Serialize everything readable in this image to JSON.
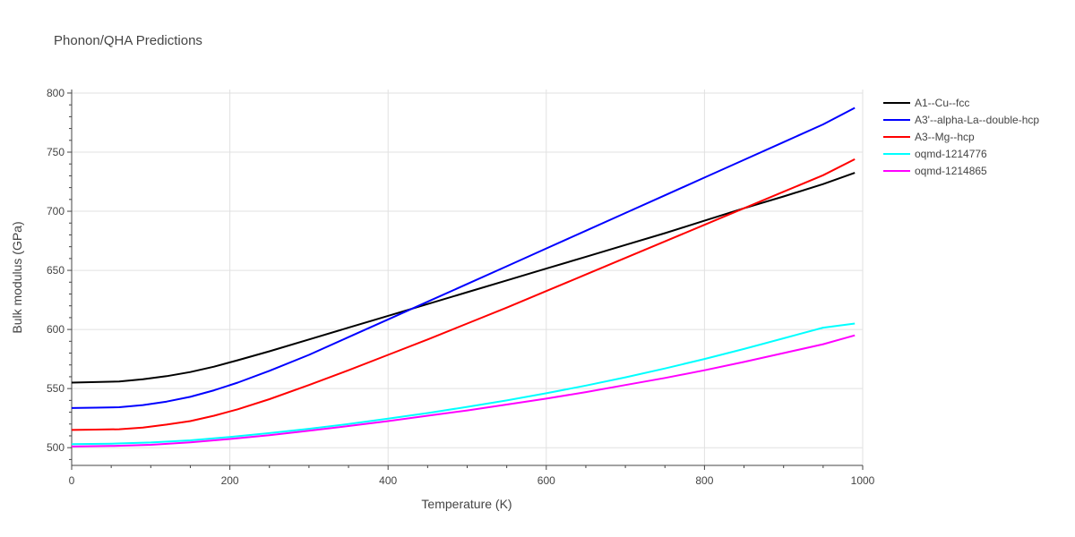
{
  "chart_data": {
    "type": "line",
    "title": "Phonon/QHA Predictions",
    "xlabel": "Temperature (K)",
    "ylabel": "Bulk modulus (GPa)",
    "xlim": [
      0,
      1000
    ],
    "ylim": [
      485,
      803
    ],
    "xticks": [
      0,
      200,
      400,
      600,
      800,
      1000
    ],
    "yticks": [
      500,
      550,
      600,
      650,
      700,
      750,
      800
    ],
    "grid": true,
    "legend_position": "top-right",
    "series": [
      {
        "name": "A1--Cu--fcc",
        "color": "#000000",
        "points": [
          [
            0,
            555
          ],
          [
            30,
            555.5
          ],
          [
            60,
            556
          ],
          [
            90,
            557.8
          ],
          [
            120,
            560.5
          ],
          [
            150,
            564
          ],
          [
            180,
            568.5
          ],
          [
            210,
            574
          ],
          [
            250,
            581.5
          ],
          [
            300,
            591.5
          ],
          [
            350,
            601.5
          ],
          [
            400,
            611.5
          ],
          [
            450,
            621.5
          ],
          [
            500,
            631.5
          ],
          [
            550,
            641.5
          ],
          [
            600,
            651.5
          ],
          [
            650,
            661.5
          ],
          [
            700,
            671.5
          ],
          [
            750,
            681.5
          ],
          [
            800,
            692
          ],
          [
            850,
            702.5
          ],
          [
            900,
            712.5
          ],
          [
            950,
            723
          ],
          [
            990,
            732.5
          ]
        ]
      },
      {
        "name": "A3'--alpha-La--double-hcp",
        "color": "#0000ff",
        "points": [
          [
            0,
            533.5
          ],
          [
            30,
            533.8
          ],
          [
            60,
            534.2
          ],
          [
            90,
            536
          ],
          [
            120,
            539
          ],
          [
            150,
            543
          ],
          [
            180,
            548.5
          ],
          [
            210,
            555
          ],
          [
            250,
            565
          ],
          [
            300,
            578.5
          ],
          [
            350,
            593.5
          ],
          [
            400,
            608.5
          ],
          [
            450,
            623.5
          ],
          [
            500,
            638.5
          ],
          [
            550,
            653.5
          ],
          [
            600,
            668.5
          ],
          [
            650,
            683.5
          ],
          [
            700,
            698.5
          ],
          [
            750,
            713.5
          ],
          [
            800,
            728.5
          ],
          [
            850,
            743.5
          ],
          [
            900,
            758.5
          ],
          [
            950,
            773.5
          ],
          [
            990,
            787.5
          ]
        ]
      },
      {
        "name": "A3--Mg--hcp",
        "color": "#ff0000",
        "points": [
          [
            0,
            515
          ],
          [
            30,
            515.3
          ],
          [
            60,
            515.6
          ],
          [
            90,
            517
          ],
          [
            120,
            519.5
          ],
          [
            150,
            522.5
          ],
          [
            180,
            527
          ],
          [
            210,
            532.5
          ],
          [
            250,
            541
          ],
          [
            300,
            553
          ],
          [
            350,
            565.5
          ],
          [
            400,
            578.5
          ],
          [
            450,
            591.5
          ],
          [
            500,
            605
          ],
          [
            550,
            618.5
          ],
          [
            600,
            632.5
          ],
          [
            650,
            646.5
          ],
          [
            700,
            660.5
          ],
          [
            750,
            674.5
          ],
          [
            800,
            688.5
          ],
          [
            850,
            702.5
          ],
          [
            900,
            716.5
          ],
          [
            950,
            730.5
          ],
          [
            990,
            744
          ]
        ]
      },
      {
        "name": "oqmd-1214776",
        "color": "#00ffff",
        "points": [
          [
            0,
            503
          ],
          [
            50,
            503.4
          ],
          [
            100,
            504.4
          ],
          [
            150,
            506.2
          ],
          [
            200,
            509
          ],
          [
            250,
            512.3
          ],
          [
            300,
            516
          ],
          [
            350,
            520
          ],
          [
            400,
            524.5
          ],
          [
            450,
            529.3
          ],
          [
            500,
            534.5
          ],
          [
            550,
            540
          ],
          [
            600,
            546
          ],
          [
            650,
            552.5
          ],
          [
            700,
            559.5
          ],
          [
            750,
            567
          ],
          [
            800,
            575
          ],
          [
            850,
            583.5
          ],
          [
            900,
            592.5
          ],
          [
            950,
            601.5
          ],
          [
            990,
            605
          ]
        ]
      },
      {
        "name": "oqmd-1214865",
        "color": "#ff00ff",
        "points": [
          [
            0,
            501
          ],
          [
            50,
            501.4
          ],
          [
            100,
            502.4
          ],
          [
            150,
            504.5
          ],
          [
            200,
            507.3
          ],
          [
            250,
            510.5
          ],
          [
            300,
            514.3
          ],
          [
            350,
            518.3
          ],
          [
            400,
            522.5
          ],
          [
            450,
            527
          ],
          [
            500,
            531.5
          ],
          [
            550,
            536.5
          ],
          [
            600,
            541.5
          ],
          [
            650,
            547
          ],
          [
            700,
            553
          ],
          [
            750,
            559
          ],
          [
            800,
            565.5
          ],
          [
            850,
            572.5
          ],
          [
            900,
            580
          ],
          [
            950,
            587.5
          ],
          [
            990,
            595
          ]
        ]
      }
    ]
  }
}
